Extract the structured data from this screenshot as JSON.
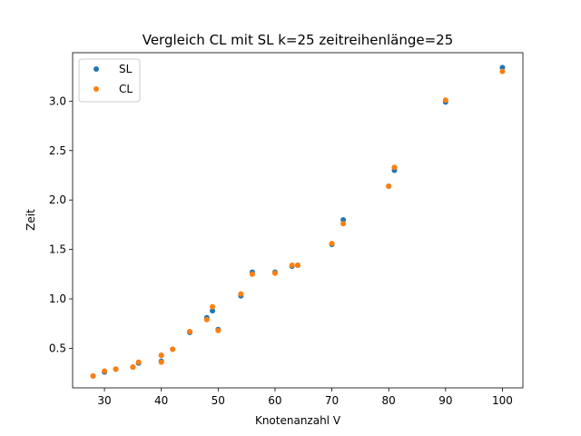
{
  "chart_data": {
    "type": "scatter",
    "title": "Vergleich CL mit SL k=25 zeitreihenlänge=25",
    "xlabel": "Knotenanzahl V",
    "ylabel": "Zeit",
    "xlim": [
      24.4,
      103.6
    ],
    "ylim": [
      0.1,
      3.49
    ],
    "xticks": [
      30,
      40,
      50,
      60,
      70,
      80,
      90,
      100
    ],
    "yticks": [
      0.5,
      1.0,
      1.5,
      2.0,
      2.5,
      3.0
    ],
    "ytick_labels": [
      "0.5",
      "1.0",
      "1.5",
      "2.0",
      "2.5",
      "3.0"
    ],
    "grid": false,
    "legend_position": "upper-left",
    "series": [
      {
        "name": "SL",
        "color": "#1f77b4",
        "points": [
          [
            28,
            0.22
          ],
          [
            30,
            0.26
          ],
          [
            32,
            0.29
          ],
          [
            35,
            0.31
          ],
          [
            36,
            0.35
          ],
          [
            40,
            0.37
          ],
          [
            40,
            0.43
          ],
          [
            42,
            0.49
          ],
          [
            45,
            0.66
          ],
          [
            48,
            0.81
          ],
          [
            49,
            0.88
          ],
          [
            50,
            0.69
          ],
          [
            54,
            1.03
          ],
          [
            56,
            1.27
          ],
          [
            60,
            1.27
          ],
          [
            63,
            1.33
          ],
          [
            64,
            1.34
          ],
          [
            70,
            1.55
          ],
          [
            72,
            1.8
          ],
          [
            80,
            2.14
          ],
          [
            81,
            2.3
          ],
          [
            90,
            2.99
          ],
          [
            100,
            3.34
          ]
        ]
      },
      {
        "name": "CL",
        "color": "#ff7f0e",
        "points": [
          [
            28,
            0.22
          ],
          [
            30,
            0.27
          ],
          [
            32,
            0.29
          ],
          [
            35,
            0.31
          ],
          [
            36,
            0.36
          ],
          [
            40,
            0.36
          ],
          [
            40,
            0.43
          ],
          [
            42,
            0.49
          ],
          [
            45,
            0.67
          ],
          [
            48,
            0.79
          ],
          [
            49,
            0.92
          ],
          [
            50,
            0.68
          ],
          [
            54,
            1.05
          ],
          [
            56,
            1.25
          ],
          [
            60,
            1.26
          ],
          [
            63,
            1.34
          ],
          [
            64,
            1.34
          ],
          [
            70,
            1.56
          ],
          [
            72,
            1.76
          ],
          [
            80,
            2.14
          ],
          [
            81,
            2.33
          ],
          [
            90,
            3.01
          ],
          [
            100,
            3.3
          ]
        ]
      }
    ]
  }
}
